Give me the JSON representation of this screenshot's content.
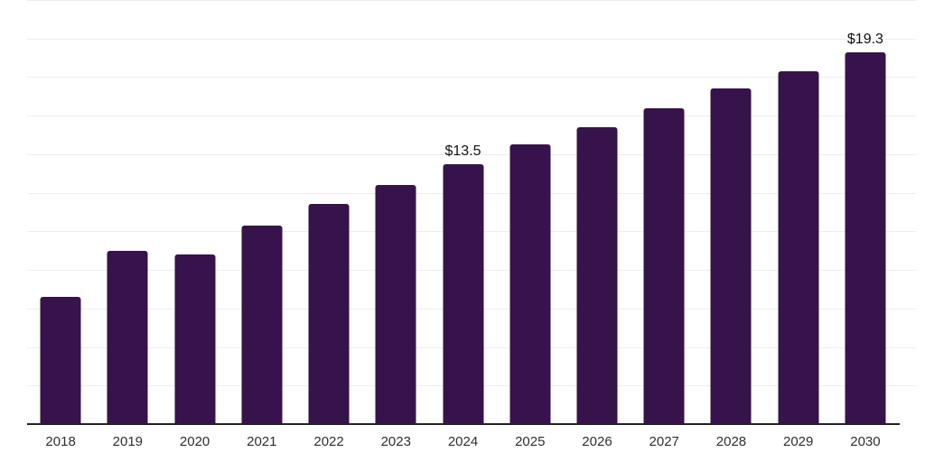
{
  "chart_data": {
    "type": "bar",
    "title": "",
    "xlabel": "",
    "ylabel": "",
    "categories": [
      "2018",
      "2019",
      "2020",
      "2021",
      "2022",
      "2023",
      "2024",
      "2025",
      "2026",
      "2027",
      "2028",
      "2029",
      "2030"
    ],
    "values": [
      6.6,
      9.0,
      8.8,
      10.3,
      11.4,
      12.4,
      13.5,
      14.5,
      15.4,
      16.4,
      17.4,
      18.3,
      19.3
    ],
    "data_labels": [
      {
        "category": "2024",
        "index": 6,
        "text": "$13.5"
      },
      {
        "category": "2030",
        "index": 12,
        "text": "$19.3"
      }
    ],
    "ylim": [
      0,
      22
    ],
    "gridline_step": 2,
    "grid": true,
    "legend": false,
    "y_axis_labels_visible": false,
    "colors": {
      "bar": "#36134a",
      "gridline": "#ededed",
      "axis_line": "#222222",
      "tick_label": "#2f2f2f",
      "data_label": "#111111",
      "background": "#ffffff"
    }
  }
}
